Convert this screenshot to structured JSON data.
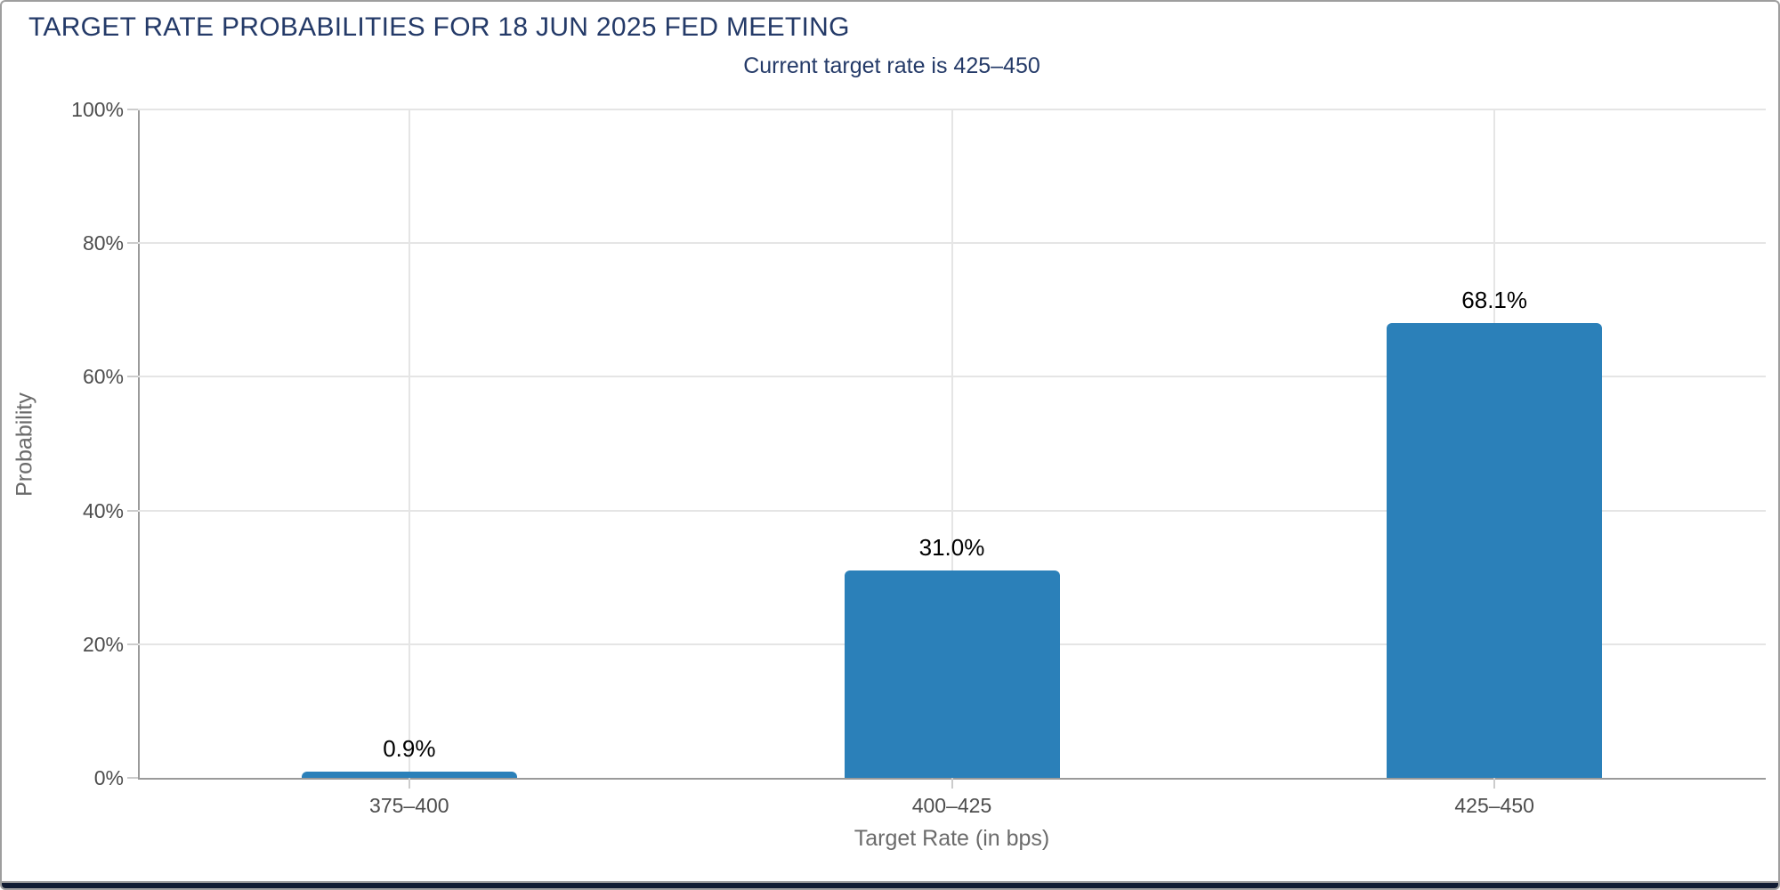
{
  "chart_data": {
    "type": "bar",
    "title": "TARGET RATE PROBABILITIES FOR 18 JUN 2025 FED MEETING",
    "subtitle": "Current target rate is 425–450",
    "categories": [
      "375–400",
      "400–425",
      "425–450"
    ],
    "values": [
      0.9,
      31.0,
      68.1
    ],
    "value_labels": [
      "0.9%",
      "31.0%",
      "68.1%"
    ],
    "xlabel": "Target Rate (in bps)",
    "ylabel": "Probability",
    "ylim": [
      0,
      100
    ],
    "yticks": [
      0,
      20,
      40,
      60,
      80,
      100
    ],
    "ytick_labels": [
      "0%",
      "20%",
      "40%",
      "60%",
      "80%",
      "100%"
    ],
    "grid": true,
    "legend": "none",
    "bar_color": "#2B80B9",
    "title_color": "#243A68",
    "gridline_color": "#E5E5E5",
    "axis_line_color": "#9A9A9A",
    "tick_label_color": "#4D4D4D",
    "axis_title_color": "#6B6B6B",
    "data_label_color": "#000000"
  },
  "footer": {
    "strip_color": "#111C33"
  }
}
